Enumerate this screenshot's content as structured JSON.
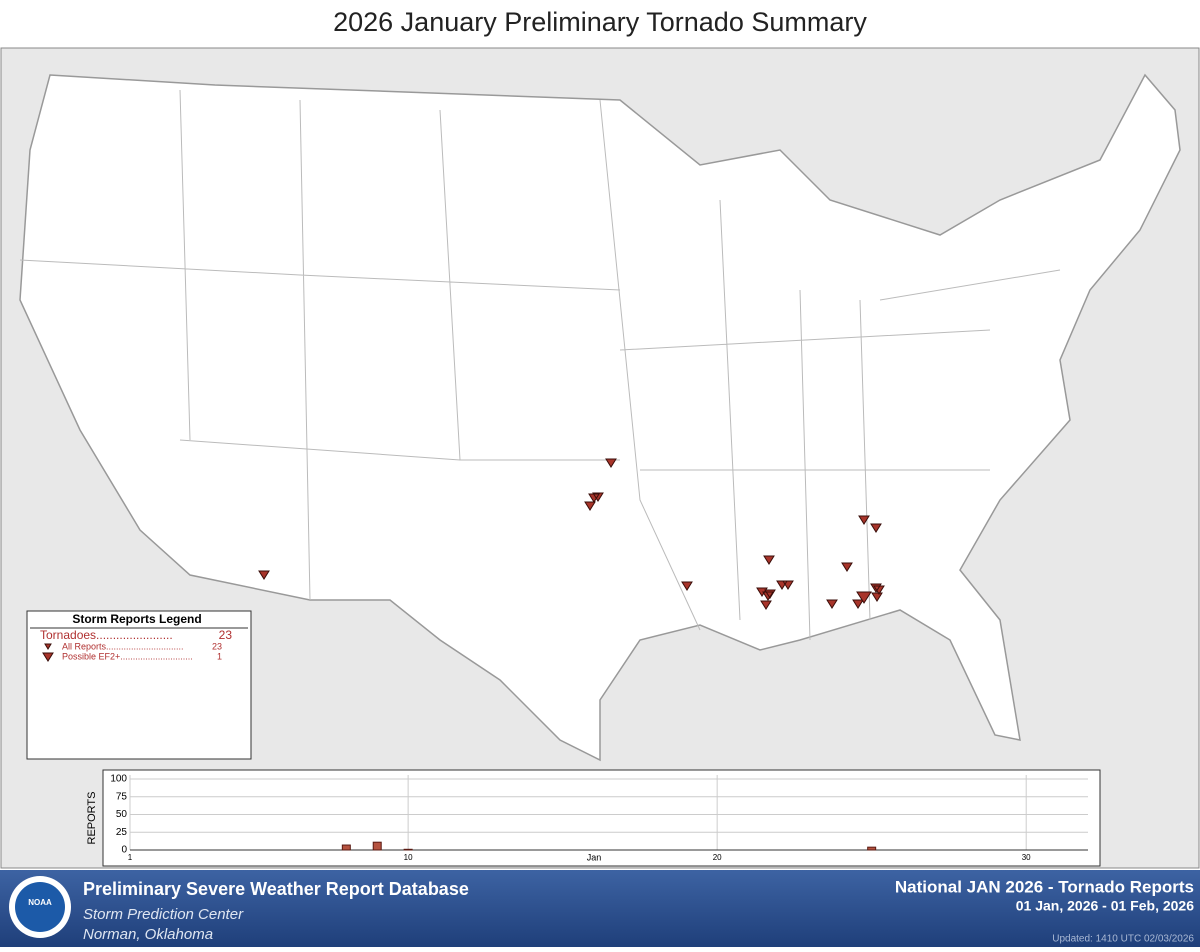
{
  "title": "2026 January Preliminary Tornado Summary",
  "legend": {
    "title": "Storm Reports Legend",
    "tornadoes": {
      "label": "Tornadoes.......................",
      "count": 23
    },
    "all_reports": {
      "label": "All Reports...............................",
      "count": 23
    },
    "possible_ef2": {
      "label": "Possible EF2+.............................",
      "count": 1
    }
  },
  "chart_data": {
    "type": "bar",
    "ylabel": "REPORTS",
    "month_label": "Jan",
    "x": [
      8,
      9,
      10,
      25
    ],
    "values": [
      7,
      11,
      1,
      4
    ],
    "color": "#b5523f",
    "xlim": [
      1,
      32
    ],
    "xticks": [
      1,
      10,
      20,
      30
    ],
    "ylim": [
      0,
      100
    ],
    "yticks": [
      0,
      25,
      50,
      75,
      100
    ],
    "grid": true
  },
  "footer": {
    "logo": "NOAA",
    "database": "Preliminary Severe Weather Report Database",
    "center": "Storm Prediction Center",
    "location": "Norman, Oklahoma",
    "report": "National JAN 2026 - Tornado Reports",
    "range": "01 Jan, 2026 - 01 Feb, 2026",
    "updated": "Updated: 1410 UTC 02/03/2026"
  }
}
